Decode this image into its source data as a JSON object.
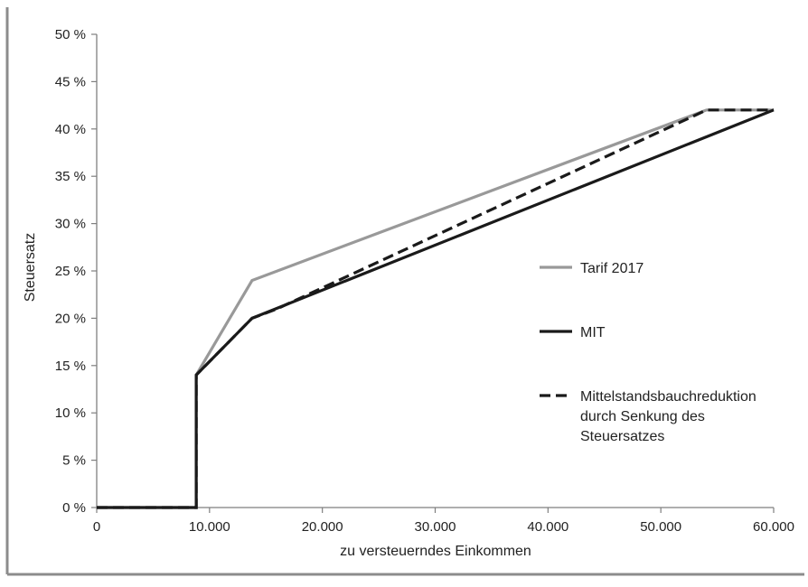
{
  "chart_data": {
    "type": "line",
    "xlabel": "zu versteuerndes Einkommen",
    "ylabel": "Steuersatz",
    "xlim": [
      0,
      60000
    ],
    "ylim": [
      0,
      50
    ],
    "xticks": [
      0,
      10000,
      20000,
      30000,
      40000,
      50000,
      60000
    ],
    "xtick_labels": [
      "0",
      "10.000",
      "20.000",
      "30.000",
      "40.000",
      "50.000",
      "60.000"
    ],
    "yticks": [
      0,
      5,
      10,
      15,
      20,
      25,
      30,
      35,
      40,
      45,
      50
    ],
    "ytick_labels": [
      "0 %",
      "5 %",
      "10 %",
      "15 %",
      "20 %",
      "25 %",
      "30 %",
      "35 %",
      "40 %",
      "45 %",
      "50 %"
    ],
    "grid": false,
    "legend_position": "right",
    "series": [
      {
        "name": "Tarif 2017",
        "color": "#999999",
        "style": "solid",
        "points": [
          [
            0,
            0
          ],
          [
            8820,
            0
          ],
          [
            8820,
            14
          ],
          [
            13770,
            24
          ],
          [
            54058,
            42
          ],
          [
            60000,
            42
          ]
        ]
      },
      {
        "name": "MIT",
        "color": "#1a1a1a",
        "style": "solid",
        "points": [
          [
            0,
            0
          ],
          [
            8820,
            0
          ],
          [
            8820,
            14
          ],
          [
            13770,
            20
          ],
          [
            60000,
            42
          ]
        ]
      },
      {
        "name": "Mittelstandsbauchreduktion durch Senkung des Steuersatzes",
        "name_lines": [
          "Mittelstandsbauchreduktion",
          "durch Senkung des",
          "Steuersatzes"
        ],
        "color": "#1a1a1a",
        "style": "dashed",
        "points": [
          [
            0,
            0
          ],
          [
            8820,
            0
          ],
          [
            8820,
            14
          ],
          [
            13770,
            20
          ],
          [
            16000,
            21
          ],
          [
            54058,
            42
          ],
          [
            60000,
            42
          ]
        ]
      }
    ]
  }
}
